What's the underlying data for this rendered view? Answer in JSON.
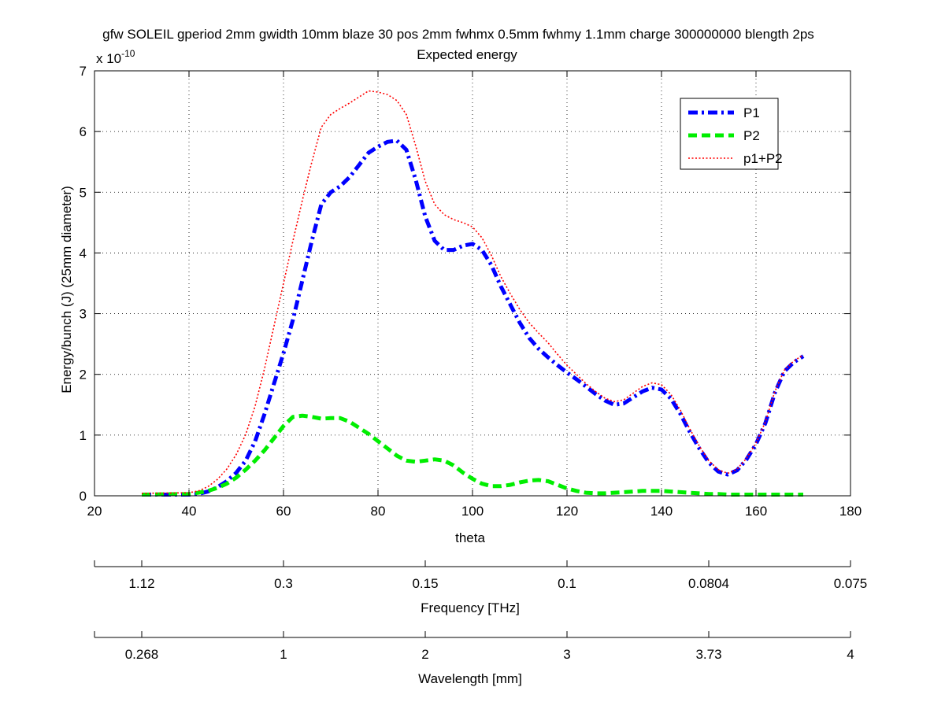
{
  "chart_data": {
    "type": "line",
    "title": "gfw SOLEIL gperiod 2mm gwidth 10mm blaze 30 pos 2mm fwhmx 0.5mm fwhmy 1.1mm charge 300000000 blength 2ps",
    "subtitle": "Expected energy",
    "xlabel": "theta",
    "ylabel": "Energy/bunch (J) (25mm diameter)",
    "y_exponent_label": "x 10",
    "y_exponent_power": "-10",
    "xlim": [
      20,
      180
    ],
    "ylim": [
      0,
      7
    ],
    "grid": true,
    "legend_position": "top-right",
    "x_ticks": [
      "20",
      "40",
      "60",
      "80",
      "100",
      "120",
      "140",
      "160",
      "180"
    ],
    "y_ticks": [
      "0",
      "1",
      "2",
      "3",
      "4",
      "5",
      "6",
      "7"
    ],
    "series": [
      {
        "name": "P1",
        "color": "#0000ff",
        "style": "dash-dot",
        "x": [
          30,
          40,
          42,
          44,
          46,
          48,
          50,
          52,
          54,
          56,
          58,
          60,
          62,
          64,
          66,
          68,
          70,
          72,
          74,
          76,
          78,
          80,
          82,
          84,
          86,
          88,
          90,
          92,
          94,
          96,
          98,
          100,
          102,
          104,
          106,
          108,
          110,
          112,
          114,
          116,
          118,
          120,
          122,
          124,
          126,
          128,
          130,
          132,
          134,
          136,
          138,
          140,
          142,
          144,
          146,
          148,
          150,
          152,
          154,
          156,
          158,
          160,
          162,
          164,
          166,
          168,
          170
        ],
        "y": [
          0.02,
          0.02,
          0.03,
          0.07,
          0.14,
          0.24,
          0.38,
          0.58,
          0.9,
          1.35,
          1.85,
          2.35,
          2.9,
          3.55,
          4.2,
          4.8,
          5.0,
          5.1,
          5.25,
          5.45,
          5.65,
          5.75,
          5.83,
          5.85,
          5.7,
          5.2,
          4.6,
          4.2,
          4.05,
          4.05,
          4.12,
          4.15,
          4.05,
          3.8,
          3.45,
          3.15,
          2.85,
          2.6,
          2.42,
          2.28,
          2.15,
          2.03,
          1.92,
          1.8,
          1.68,
          1.57,
          1.5,
          1.52,
          1.62,
          1.72,
          1.78,
          1.75,
          1.6,
          1.35,
          1.05,
          0.78,
          0.55,
          0.4,
          0.35,
          0.42,
          0.6,
          0.85,
          1.2,
          1.7,
          2.05,
          2.2,
          2.3
        ]
      },
      {
        "name": "P2",
        "color": "#00ee00",
        "style": "dashed",
        "x": [
          30,
          40,
          42,
          44,
          46,
          48,
          50,
          52,
          54,
          56,
          58,
          60,
          62,
          64,
          66,
          68,
          70,
          72,
          74,
          76,
          78,
          80,
          82,
          84,
          86,
          88,
          90,
          92,
          94,
          96,
          98,
          100,
          102,
          104,
          106,
          108,
          110,
          112,
          114,
          116,
          118,
          120,
          122,
          124,
          126,
          128,
          130,
          132,
          134,
          136,
          138,
          140,
          142,
          144,
          146,
          148,
          150,
          152,
          154,
          156,
          158,
          160,
          162,
          164,
          166,
          168,
          170
        ],
        "y": [
          0.02,
          0.03,
          0.05,
          0.08,
          0.13,
          0.2,
          0.3,
          0.43,
          0.58,
          0.75,
          0.95,
          1.15,
          1.3,
          1.32,
          1.3,
          1.27,
          1.28,
          1.28,
          1.22,
          1.12,
          1.02,
          0.9,
          0.78,
          0.66,
          0.58,
          0.56,
          0.58,
          0.6,
          0.58,
          0.5,
          0.38,
          0.28,
          0.2,
          0.16,
          0.16,
          0.18,
          0.22,
          0.25,
          0.26,
          0.24,
          0.18,
          0.12,
          0.08,
          0.05,
          0.04,
          0.04,
          0.05,
          0.06,
          0.07,
          0.08,
          0.08,
          0.08,
          0.07,
          0.06,
          0.05,
          0.04,
          0.03,
          0.03,
          0.02,
          0.02,
          0.02,
          0.02,
          0.02,
          0.02,
          0.02,
          0.02,
          0.02
        ]
      },
      {
        "name": "p1+P2",
        "color": "#ff0000",
        "style": "dotted",
        "x": [
          30,
          40,
          42,
          44,
          46,
          48,
          50,
          52,
          54,
          56,
          58,
          60,
          62,
          64,
          66,
          68,
          70,
          72,
          74,
          76,
          78,
          80,
          82,
          84,
          86,
          88,
          90,
          92,
          94,
          96,
          98,
          100,
          102,
          104,
          106,
          108,
          110,
          112,
          114,
          116,
          118,
          120,
          122,
          124,
          126,
          128,
          130,
          132,
          134,
          136,
          138,
          140,
          142,
          144,
          146,
          148,
          150,
          152,
          154,
          156,
          158,
          160,
          162,
          164,
          166,
          168,
          170
        ],
        "y": [
          0.04,
          0.05,
          0.08,
          0.15,
          0.27,
          0.44,
          0.68,
          1.01,
          1.48,
          2.1,
          2.8,
          3.5,
          4.2,
          4.87,
          5.5,
          6.07,
          6.28,
          6.38,
          6.47,
          6.57,
          6.67,
          6.65,
          6.61,
          6.51,
          6.28,
          5.76,
          5.18,
          4.8,
          4.63,
          4.55,
          4.5,
          4.43,
          4.25,
          3.96,
          3.61,
          3.33,
          3.07,
          2.85,
          2.68,
          2.52,
          2.33,
          2.15,
          2.0,
          1.85,
          1.72,
          1.61,
          1.55,
          1.58,
          1.69,
          1.8,
          1.86,
          1.83,
          1.67,
          1.41,
          1.1,
          0.82,
          0.58,
          0.43,
          0.37,
          0.44,
          0.62,
          0.87,
          1.22,
          1.72,
          2.07,
          2.22,
          2.32
        ]
      }
    ],
    "secondary_axes": [
      {
        "label": "Frequency [THz]",
        "tick_labels": [
          "1.12",
          "0.3",
          "0.15",
          "0.1",
          "0.0804",
          "0.075"
        ],
        "tick_theta": [
          30,
          60,
          90,
          120,
          150,
          180
        ]
      },
      {
        "label": "Wavelength [mm]",
        "tick_labels": [
          "0.268",
          "1",
          "2",
          "3",
          "3.73",
          "4"
        ],
        "tick_theta": [
          30,
          60,
          90,
          120,
          150,
          180
        ]
      }
    ]
  }
}
